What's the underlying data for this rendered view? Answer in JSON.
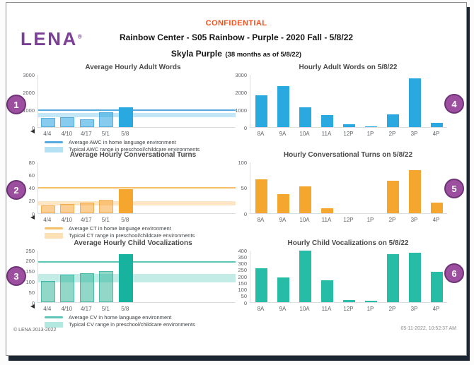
{
  "header": {
    "confidential": "CONFIDENTIAL",
    "title": "Rainbow Center - S05 Rainbow - Purple - 2020 Fall - 5/8/22",
    "child_name": "Skyla Purple",
    "child_age": "(38 months as of 5/8/22)",
    "logo_text": "LENA",
    "logo_reg": "®"
  },
  "footer": {
    "copyright": "© LENA 2013-2022",
    "timestamp": "05-11-2022, 10:52:37 AM"
  },
  "colors": {
    "confidential_red": "#F4511E",
    "lena_purple": "#7C3F98",
    "callout_fill": "#9C4F9F",
    "callout_border": "#6E3277",
    "blue": "#29A9E0",
    "blue_light": "#87CBEE",
    "orange": "#F5A62E",
    "orange_light": "#FBCE93",
    "teal": "#17B39E",
    "teal_light": "#92D7C8"
  },
  "callouts": [
    {
      "label": "1"
    },
    {
      "label": "2"
    },
    {
      "label": "3"
    },
    {
      "label": "4"
    },
    {
      "label": "5"
    },
    {
      "label": "6"
    }
  ],
  "chart_data": [
    {
      "id": "awc_avg",
      "type": "bar",
      "title": "Average Hourly Adult Words",
      "categories": [
        "4/4",
        "4/10",
        "4/17",
        "5/1",
        "5/8"
      ],
      "values": [
        520,
        560,
        430,
        830,
        1120
      ],
      "ylim": [
        0,
        3000
      ],
      "yticks": [
        0,
        1000,
        2000,
        3000
      ],
      "bar_color": "#87CBEE",
      "bar_border": "#55B0E0",
      "highlight_last": true,
      "highlight_color": "#29A9E0",
      "axis_marker": true,
      "ref_line": {
        "value": 950,
        "color": "#56A9DE",
        "label": "Average AWC in home language environment"
      },
      "ref_band": {
        "from": 550,
        "to": 800,
        "color": "#29A9E0",
        "label": "Typical AWC range in preschool/childcare environments"
      }
    },
    {
      "id": "awc_hourly",
      "type": "bar",
      "title": "Hourly Adult Words on 5/8/22",
      "categories": [
        "8A",
        "9A",
        "10A",
        "11A",
        "12P",
        "1P",
        "2P",
        "3P",
        "4P"
      ],
      "values": [
        1800,
        2330,
        1120,
        690,
        180,
        40,
        710,
        2780,
        230
      ],
      "ylim": [
        0,
        3000
      ],
      "yticks": [
        0,
        1000,
        2000,
        3000
      ],
      "bar_color": "#29A9E0"
    },
    {
      "id": "ct_avg",
      "type": "bar",
      "title": "Average Hourly Conversational Turns",
      "categories": [
        "4/4",
        "4/10",
        "4/17",
        "5/1",
        "5/8"
      ],
      "values": [
        12,
        14,
        16,
        21,
        37
      ],
      "ylim": [
        0,
        80
      ],
      "yticks": [
        0,
        20,
        40,
        60,
        80
      ],
      "bar_color": "#FBCE93",
      "bar_border": "#F3B056",
      "highlight_last": true,
      "highlight_color": "#F5A62E",
      "axis_marker": true,
      "ref_line": {
        "value": 40,
        "color": "#F3C068",
        "label": "Average CT in home language environment"
      },
      "ref_band": {
        "from": 12,
        "to": 19,
        "color": "#F5A62E",
        "label": "Typical CT range in preschool/childcare environments"
      }
    },
    {
      "id": "ct_hourly",
      "type": "bar",
      "title": "Hourly Conversational Turns on 5/8/22",
      "categories": [
        "8A",
        "9A",
        "10A",
        "11A",
        "12P",
        "1P",
        "2P",
        "3P",
        "4P"
      ],
      "values": [
        66,
        37,
        52,
        10,
        0,
        0,
        63,
        83,
        20
      ],
      "ylim": [
        0,
        100
      ],
      "yticks": [
        0,
        50,
        100
      ],
      "bar_color": "#F5A62E"
    },
    {
      "id": "cv_avg",
      "type": "bar",
      "title": "Average Hourly Child Vocalizations",
      "categories": [
        "4/4",
        "4/10",
        "4/17",
        "5/1",
        "5/8"
      ],
      "values": [
        100,
        133,
        140,
        148,
        231
      ],
      "ylim": [
        0,
        250
      ],
      "yticks": [
        0,
        50,
        100,
        150,
        200,
        250
      ],
      "bar_color": "#92D7C8",
      "bar_border": "#4CBCA8",
      "highlight_last": true,
      "highlight_color": "#17B39E",
      "axis_marker": true,
      "ref_line": {
        "value": 193,
        "color": "#5FC6B7",
        "label": "Average CV in home language environment"
      },
      "ref_band": {
        "from": 95,
        "to": 135,
        "color": "#26BCA6",
        "label": "Typical CV range in preschool/childcare environments"
      }
    },
    {
      "id": "cv_hourly",
      "type": "bar",
      "title": "Hourly Child Vocalizations on 5/8/22",
      "categories": [
        "8A",
        "9A",
        "10A",
        "11A",
        "12P",
        "1P",
        "2P",
        "3P",
        "4P"
      ],
      "values": [
        260,
        190,
        396,
        168,
        15,
        10,
        369,
        378,
        235
      ],
      "ylim": [
        0,
        400
      ],
      "yticks": [
        0,
        50,
        100,
        150,
        200,
        250,
        300,
        350,
        400
      ],
      "bar_color": "#26BCA6"
    }
  ]
}
